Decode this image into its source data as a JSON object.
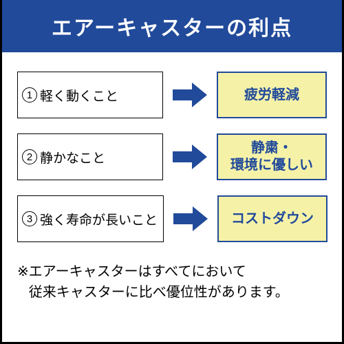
{
  "colors": {
    "titleBg": "#214a9a",
    "titleText": "#ffffff",
    "rightBg": "#f5f2a8",
    "rightBorder": "#214a9a",
    "rightText": "#214a9a",
    "arrow": "#214a9a"
  },
  "title": "エアーキャスターの利点",
  "rows": [
    {
      "num": "1",
      "left": "軽く動くこと",
      "right": "疲労軽減"
    },
    {
      "num": "2",
      "left": "静かなこと",
      "right": "静粛・\n環境に優しい"
    },
    {
      "num": "3",
      "left": "強く寿命が長いこと",
      "right": "コストダウン"
    }
  ],
  "footnote": {
    "marker": "※",
    "text": "エアーキャスターはすべてにおいて\n従来キャスターに比べ優位性があります。"
  }
}
